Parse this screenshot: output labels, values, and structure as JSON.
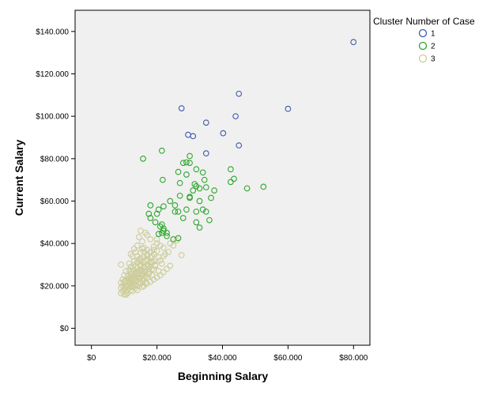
{
  "chart_data": {
    "type": "scatter",
    "xlabel": "Beginning Salary",
    "ylabel": "Current Salary",
    "xlim": [
      -5000,
      85000
    ],
    "ylim": [
      -8000,
      150000
    ],
    "xticks": [
      0,
      20000,
      40000,
      60000,
      80000
    ],
    "xtick_labels": [
      "$0",
      "$20.000",
      "$40.000",
      "$60.000",
      "$80.000"
    ],
    "yticks": [
      0,
      20000,
      40000,
      60000,
      80000,
      100000,
      120000,
      140000
    ],
    "ytick_labels": [
      "$0",
      "$20.000",
      "$40.000",
      "$60.000",
      "$80.000",
      "$100.000",
      "$120.000",
      "$140.000"
    ],
    "grid": false,
    "plot_background": "#f0f0f0",
    "marker": "open-circle",
    "legend": {
      "title": "Cluster Number of Case",
      "placement": "top-right-outside"
    },
    "series": [
      {
        "name": "1",
        "color": "#3e58ac",
        "points": [
          [
            79980,
            135000
          ],
          [
            27500,
            103750
          ],
          [
            45000,
            110625
          ],
          [
            60000,
            103500
          ],
          [
            35000,
            97000
          ],
          [
            44000,
            100000
          ],
          [
            40200,
            92000
          ],
          [
            29500,
            91250
          ],
          [
            31000,
            90625
          ],
          [
            45000,
            86250
          ],
          [
            35000,
            82500
          ]
        ]
      },
      {
        "name": "2",
        "color": "#2ea62e",
        "points": [
          [
            15750,
            80000
          ],
          [
            21500,
            83750
          ],
          [
            30000,
            81250
          ],
          [
            29000,
            78250
          ],
          [
            28000,
            78000
          ],
          [
            30000,
            78000
          ],
          [
            32000,
            75000
          ],
          [
            34000,
            73500
          ],
          [
            26500,
            73750
          ],
          [
            42500,
            75000
          ],
          [
            29000,
            72500
          ],
          [
            21750,
            70000
          ],
          [
            27000,
            68500
          ],
          [
            31500,
            68000
          ],
          [
            34500,
            70000
          ],
          [
            43500,
            70500
          ],
          [
            32000,
            67000
          ],
          [
            37500,
            65000
          ],
          [
            31000,
            65000
          ],
          [
            33000,
            66000
          ],
          [
            52500,
            66750
          ],
          [
            47500,
            66000
          ],
          [
            42500,
            69000
          ],
          [
            35000,
            66500
          ],
          [
            24000,
            60000
          ],
          [
            30000,
            61500
          ],
          [
            25500,
            58000
          ],
          [
            33000,
            60000
          ],
          [
            36500,
            61500
          ],
          [
            27000,
            62500
          ],
          [
            22000,
            57500
          ],
          [
            32000,
            55000
          ],
          [
            29000,
            56000
          ],
          [
            25500,
            55000
          ],
          [
            20500,
            56000
          ],
          [
            18000,
            58000
          ],
          [
            20000,
            54000
          ],
          [
            17500,
            54000
          ],
          [
            26500,
            55000
          ],
          [
            35000,
            55000
          ],
          [
            28000,
            52000
          ],
          [
            36000,
            51000
          ],
          [
            18000,
            52000
          ],
          [
            19500,
            50000
          ],
          [
            21000,
            48000
          ],
          [
            22000,
            47000
          ],
          [
            21500,
            45000
          ],
          [
            20500,
            44500
          ],
          [
            23000,
            45000
          ],
          [
            22000,
            46000
          ],
          [
            33000,
            47500
          ],
          [
            32000,
            50000
          ],
          [
            25000,
            42000
          ],
          [
            26500,
            42500
          ],
          [
            21500,
            49000
          ],
          [
            30000,
            62000
          ],
          [
            34000,
            56000
          ],
          [
            23000,
            43500
          ]
        ]
      },
      {
        "name": "3",
        "color": "#cccc99",
        "points": [
          [
            15000,
            46000
          ],
          [
            14500,
            43000
          ],
          [
            16500,
            45000
          ],
          [
            15500,
            41000
          ],
          [
            17000,
            44000
          ],
          [
            18000,
            42000
          ],
          [
            24000,
            40000
          ],
          [
            25000,
            39000
          ],
          [
            26000,
            41500
          ],
          [
            20000,
            40000
          ],
          [
            27500,
            34500
          ],
          [
            19000,
            37000
          ],
          [
            22000,
            38000
          ],
          [
            16000,
            38000
          ],
          [
            14000,
            39000
          ],
          [
            13500,
            36000
          ],
          [
            15000,
            35500
          ],
          [
            17000,
            35000
          ],
          [
            18500,
            34000
          ],
          [
            20500,
            33500
          ],
          [
            12500,
            34000
          ],
          [
            13000,
            31500
          ],
          [
            14500,
            32500
          ],
          [
            16500,
            32000
          ],
          [
            18000,
            31000
          ],
          [
            19500,
            30000
          ],
          [
            21500,
            30500
          ],
          [
            11500,
            30500
          ],
          [
            12000,
            29000
          ],
          [
            13500,
            29000
          ],
          [
            15000,
            29500
          ],
          [
            16000,
            28500
          ],
          [
            17500,
            28000
          ],
          [
            19000,
            27500
          ],
          [
            20500,
            27000
          ],
          [
            9000,
            30000
          ],
          [
            10500,
            27000
          ],
          [
            11500,
            27500
          ],
          [
            12500,
            26500
          ],
          [
            13500,
            26000
          ],
          [
            14500,
            27000
          ],
          [
            15500,
            26000
          ],
          [
            16500,
            26500
          ],
          [
            17500,
            25500
          ],
          [
            18500,
            25000
          ],
          [
            10000,
            25000
          ],
          [
            11000,
            24500
          ],
          [
            12000,
            24000
          ],
          [
            13000,
            25000
          ],
          [
            14000,
            24500
          ],
          [
            15000,
            24000
          ],
          [
            16000,
            23500
          ],
          [
            17000,
            24000
          ],
          [
            9500,
            23000
          ],
          [
            10500,
            22500
          ],
          [
            11500,
            22000
          ],
          [
            12500,
            23000
          ],
          [
            13500,
            22500
          ],
          [
            14500,
            22000
          ],
          [
            15500,
            22500
          ],
          [
            16500,
            21500
          ],
          [
            9000,
            21500
          ],
          [
            10000,
            21000
          ],
          [
            11000,
            20500
          ],
          [
            12000,
            21000
          ],
          [
            13000,
            20500
          ],
          [
            14000,
            20000
          ],
          [
            15000,
            21000
          ],
          [
            9500,
            20000
          ],
          [
            10500,
            19500
          ],
          [
            11500,
            19000
          ],
          [
            12500,
            19500
          ],
          [
            13500,
            19000
          ],
          [
            9000,
            19000
          ],
          [
            10000,
            18500
          ],
          [
            11000,
            18000
          ],
          [
            12000,
            18000
          ],
          [
            9500,
            17500
          ],
          [
            10500,
            17000
          ],
          [
            11000,
            16500
          ],
          [
            9000,
            16500
          ],
          [
            10000,
            16000
          ],
          [
            10500,
            15800
          ],
          [
            12500,
            17500
          ],
          [
            14000,
            18000
          ],
          [
            15500,
            19500
          ],
          [
            16000,
            20000
          ],
          [
            17000,
            21000
          ],
          [
            18000,
            22000
          ],
          [
            19000,
            23000
          ],
          [
            20000,
            24000
          ],
          [
            21000,
            25000
          ],
          [
            22000,
            26500
          ],
          [
            23000,
            28000
          ],
          [
            24000,
            29500
          ],
          [
            13000,
            27500
          ],
          [
            14000,
            28500
          ],
          [
            15000,
            30000
          ],
          [
            16000,
            31000
          ],
          [
            17000,
            32500
          ],
          [
            18000,
            33500
          ],
          [
            19000,
            35000
          ],
          [
            20000,
            36500
          ],
          [
            12000,
            25500
          ],
          [
            13000,
            23500
          ],
          [
            14000,
            26000
          ],
          [
            15000,
            27500
          ],
          [
            16000,
            29000
          ],
          [
            17000,
            30000
          ],
          [
            18000,
            29000
          ],
          [
            19000,
            31500
          ],
          [
            21000,
            32000
          ],
          [
            22000,
            34000
          ],
          [
            23500,
            36000
          ],
          [
            11500,
            23500
          ],
          [
            12500,
            21500
          ],
          [
            13500,
            24000
          ],
          [
            14500,
            25500
          ],
          [
            15500,
            27000
          ],
          [
            16500,
            24500
          ],
          [
            17500,
            26500
          ],
          [
            18500,
            28000
          ],
          [
            19500,
            29500
          ],
          [
            10500,
            20000
          ],
          [
            11500,
            21500
          ],
          [
            12500,
            22500
          ],
          [
            13500,
            20500
          ],
          [
            14500,
            23500
          ],
          [
            15500,
            25000
          ],
          [
            16500,
            27500
          ],
          [
            17500,
            29500
          ],
          [
            18500,
            31000
          ],
          [
            12000,
            35000
          ],
          [
            13000,
            37500
          ],
          [
            14000,
            34000
          ],
          [
            15000,
            33000
          ],
          [
            16000,
            36000
          ],
          [
            17000,
            37000
          ],
          [
            21000,
            39000
          ],
          [
            22500,
            35000
          ],
          [
            10000,
            22000
          ],
          [
            11000,
            23000
          ],
          [
            12000,
            27000
          ],
          [
            13000,
            30000
          ],
          [
            14000,
            31000
          ],
          [
            15000,
            31500
          ],
          [
            16000,
            33500
          ],
          [
            17000,
            34000
          ],
          [
            18000,
            36000
          ],
          [
            19000,
            38500
          ],
          [
            20000,
            42000
          ],
          [
            15500,
            37500
          ]
        ]
      }
    ]
  }
}
